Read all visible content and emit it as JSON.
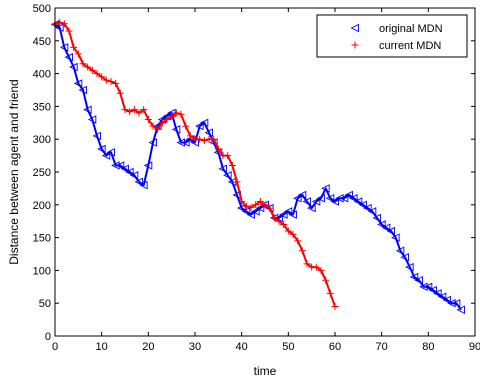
{
  "chart_data": {
    "type": "line",
    "title": "",
    "xlabel": "time",
    "ylabel": "Distance between agent and friend",
    "xlim": [
      0,
      90
    ],
    "ylim": [
      0,
      500
    ],
    "xticks": [
      0,
      10,
      20,
      30,
      40,
      50,
      60,
      70,
      80,
      90
    ],
    "yticks": [
      0,
      50,
      100,
      150,
      200,
      250,
      300,
      350,
      400,
      450,
      500
    ],
    "grid": false,
    "legend_position": "top-right",
    "series": [
      {
        "name": "original MDN",
        "color": "#0000ff",
        "marker": "triangle-left",
        "x": [
          0,
          1,
          2,
          3,
          4,
          5,
          6,
          7,
          8,
          9,
          10,
          11,
          12,
          13,
          14,
          15,
          16,
          17,
          18,
          19,
          20,
          21,
          22,
          23,
          24,
          25,
          26,
          27,
          28,
          29,
          30,
          31,
          32,
          33,
          34,
          35,
          36,
          37,
          38,
          39,
          40,
          41,
          42,
          43,
          44,
          45,
          46,
          47,
          48,
          49,
          50,
          51,
          52,
          53,
          54,
          55,
          56,
          57,
          58,
          59,
          60,
          61,
          62,
          63,
          64,
          65,
          66,
          67,
          68,
          69,
          70,
          71,
          72,
          73,
          74,
          75,
          76,
          77,
          78,
          79,
          80,
          81,
          82,
          83,
          84,
          85,
          86,
          87
        ],
        "values": [
          475,
          470,
          440,
          425,
          410,
          385,
          375,
          345,
          330,
          305,
          285,
          275,
          280,
          260,
          260,
          255,
          250,
          245,
          235,
          230,
          260,
          295,
          320,
          330,
          335,
          340,
          315,
          295,
          295,
          300,
          295,
          320,
          325,
          310,
          295,
          280,
          255,
          245,
          235,
          215,
          195,
          190,
          185,
          190,
          195,
          200,
          195,
          180,
          180,
          185,
          190,
          185,
          210,
          215,
          205,
          195,
          205,
          210,
          225,
          210,
          205,
          210,
          210,
          215,
          210,
          205,
          200,
          195,
          190,
          180,
          170,
          165,
          160,
          150,
          130,
          120,
          105,
          90,
          85,
          75,
          75,
          70,
          65,
          60,
          55,
          50,
          50,
          40
        ]
      },
      {
        "name": "current MDN",
        "color": "#ff0000",
        "marker": "plus",
        "x": [
          0,
          1,
          2,
          3,
          4,
          5,
          6,
          7,
          8,
          9,
          10,
          11,
          12,
          13,
          14,
          15,
          16,
          17,
          18,
          19,
          20,
          21,
          22,
          23,
          24,
          25,
          26,
          27,
          28,
          29,
          30,
          31,
          32,
          33,
          34,
          35,
          36,
          37,
          38,
          39,
          40,
          41,
          42,
          43,
          44,
          45,
          46,
          47,
          48,
          49,
          50,
          51,
          52,
          53,
          54,
          55,
          56,
          57,
          58,
          59,
          60
        ],
        "values": [
          475,
          478,
          476,
          465,
          440,
          430,
          415,
          410,
          405,
          400,
          395,
          390,
          388,
          385,
          370,
          345,
          342,
          345,
          340,
          345,
          330,
          320,
          315,
          325,
          330,
          335,
          340,
          338,
          320,
          305,
          300,
          300,
          298,
          300,
          300,
          285,
          275,
          275,
          260,
          235,
          205,
          198,
          196,
          200,
          205,
          200,
          195,
          180,
          175,
          170,
          160,
          155,
          145,
          130,
          110,
          105,
          105,
          100,
          85,
          65,
          45
        ]
      }
    ]
  }
}
